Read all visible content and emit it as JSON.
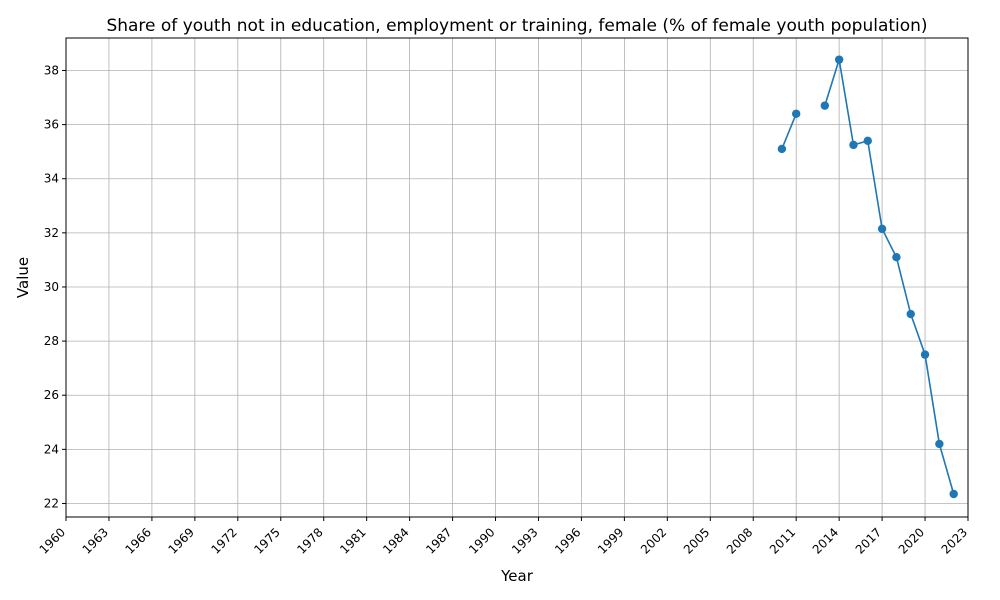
{
  "chart_data": {
    "type": "line",
    "title": "Share of youth not in education, employment or training, female (% of female youth population)",
    "xlabel": "Year",
    "ylabel": "Value",
    "xlim": [
      1960,
      2023
    ],
    "ylim": [
      21.5,
      39.2
    ],
    "x_ticks": [
      1960,
      1963,
      1966,
      1969,
      1972,
      1975,
      1978,
      1981,
      1984,
      1987,
      1990,
      1993,
      1996,
      1999,
      2002,
      2005,
      2008,
      2011,
      2014,
      2017,
      2020,
      2023
    ],
    "y_ticks": [
      22,
      24,
      26,
      28,
      30,
      32,
      34,
      36,
      38
    ],
    "grid": true,
    "x_tick_rotation": 45,
    "series": [
      {
        "color": "#1f77b4",
        "marker": "circle",
        "segments": [
          [
            {
              "x": 2010,
              "y": 35.1
            },
            {
              "x": 2011,
              "y": 36.4
            }
          ],
          [
            {
              "x": 2013,
              "y": 36.7
            },
            {
              "x": 2014,
              "y": 38.4
            },
            {
              "x": 2015,
              "y": 35.25
            },
            {
              "x": 2016,
              "y": 35.4
            },
            {
              "x": 2017,
              "y": 32.15
            },
            {
              "x": 2018,
              "y": 31.1
            },
            {
              "x": 2019,
              "y": 29.0
            },
            {
              "x": 2020,
              "y": 27.5
            },
            {
              "x": 2021,
              "y": 24.2
            },
            {
              "x": 2022,
              "y": 22.35
            }
          ]
        ]
      }
    ]
  }
}
